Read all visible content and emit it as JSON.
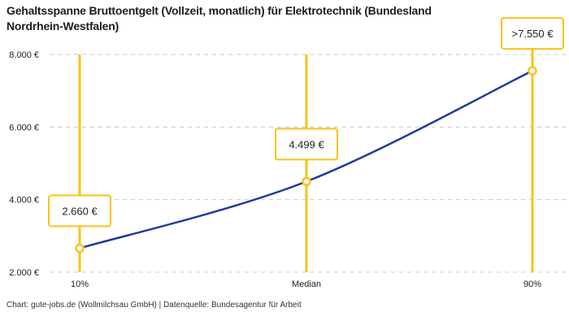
{
  "header": {
    "title_lines": [
      "Gehaltsspanne Bruttoentgelt (Vollzeit, monatlich) für Elektrotechnik (Bundesland",
      "Nordrhein-Westfalen)"
    ]
  },
  "footer": {
    "credit": "Chart: gute-jobs.de (Wollmilchsau GmbH) | Datenquelle: Bundesagentur für Arbeit"
  },
  "chart_data": {
    "type": "line",
    "title": "Gehaltsspanne Bruttoentgelt (Vollzeit, monatlich) für Elektrotechnik (Bundesland Nordrhein-Westfalen)",
    "categories": [
      "10%",
      "Median",
      "90%"
    ],
    "values": [
      2660,
      4499,
      7550
    ],
    "point_labels": [
      "2.660 €",
      "4.499 €",
      ">7.550 €"
    ],
    "xlabel": "",
    "ylabel": "",
    "ylim": [
      2000,
      8000
    ],
    "yticks": [
      {
        "value": 2000,
        "label": "2.000 €"
      },
      {
        "value": 4000,
        "label": "4.000 €"
      },
      {
        "value": 6000,
        "label": "6.000 €"
      },
      {
        "value": 8000,
        "label": "8.000 €"
      }
    ],
    "grid": "horizontal-dashed",
    "legend": "none",
    "colors": {
      "line": "#1e3a9c",
      "accent": "#fbc116",
      "marker_fill": "#ffffff",
      "label_box_bg": "#ffffff",
      "grid": "#c9c9c9",
      "text": "#222222"
    }
  }
}
